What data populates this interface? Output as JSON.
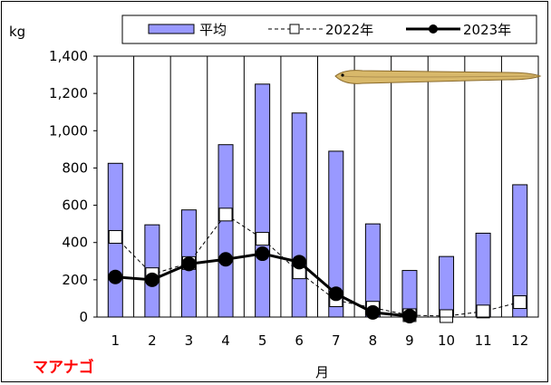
{
  "chart_data": {
    "type": "bar",
    "title": "",
    "species_label": "マアナゴ",
    "ylabel": "kg",
    "xlabel": "月",
    "categories": [
      "1",
      "2",
      "3",
      "4",
      "5",
      "6",
      "7",
      "8",
      "9",
      "10",
      "11",
      "12"
    ],
    "ylim": [
      0,
      1400
    ],
    "yticks": [
      0,
      200,
      400,
      600,
      800,
      1000,
      1200,
      1400
    ],
    "ytick_labels": [
      "0",
      "200",
      "400",
      "600",
      "800",
      "1,000",
      "1,200",
      "1,400"
    ],
    "grid": "vertical",
    "legend_position": "top",
    "series": [
      {
        "name": "平均",
        "kind": "bar",
        "color": "#9999ff",
        "values": [
          825,
          495,
          575,
          925,
          1250,
          1095,
          890,
          500,
          250,
          325,
          450,
          710
        ]
      },
      {
        "name": "2022年",
        "kind": "line-dashed-square",
        "color": "#000000",
        "values": [
          430,
          230,
          290,
          550,
          420,
          240,
          90,
          50,
          10,
          5,
          30,
          80
        ]
      },
      {
        "name": "2023年",
        "kind": "line-solid-circle",
        "color": "#000000",
        "values": [
          215,
          200,
          285,
          310,
          340,
          295,
          125,
          25,
          5,
          null,
          null,
          null
        ]
      }
    ]
  }
}
